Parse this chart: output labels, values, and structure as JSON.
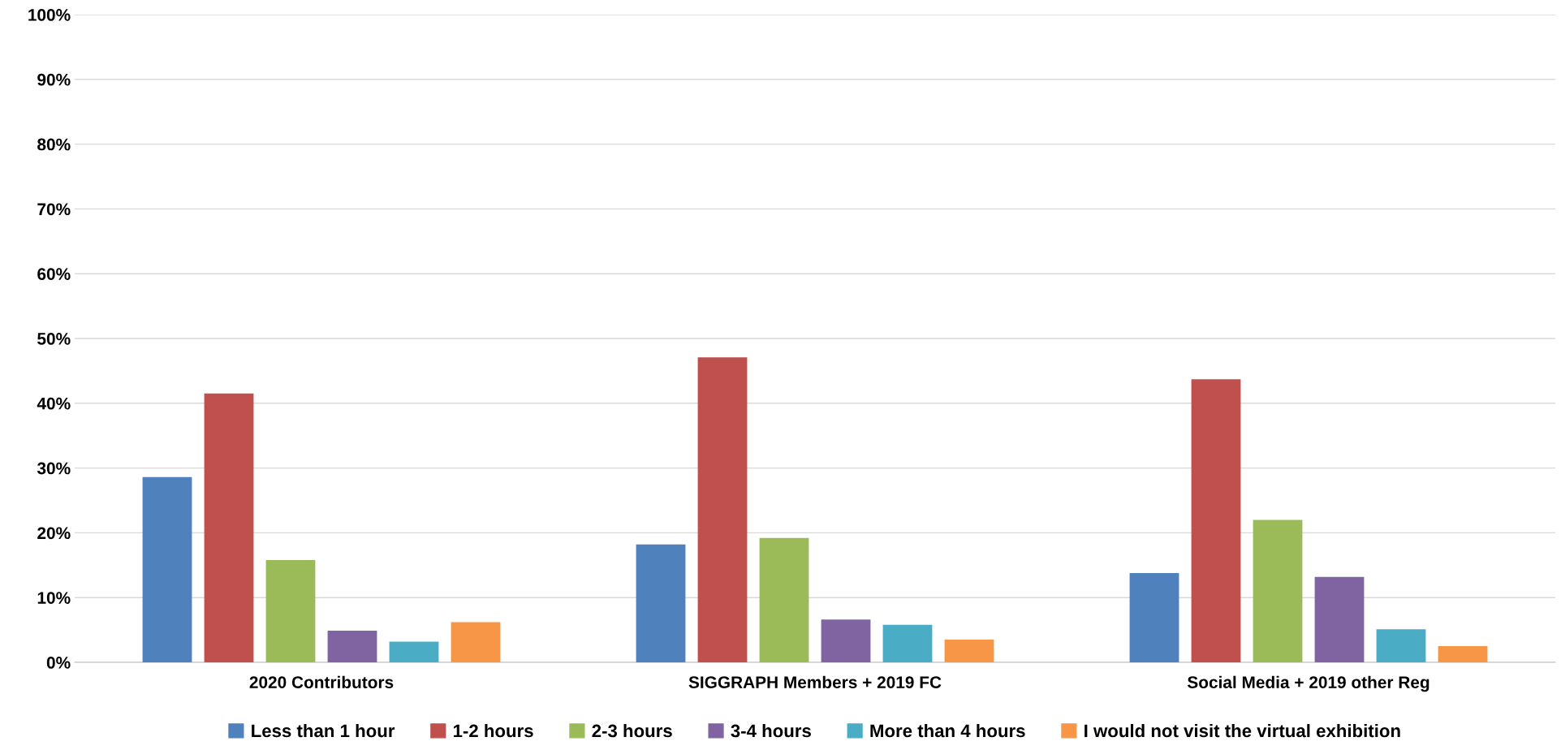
{
  "chart_data": {
    "type": "bar",
    "categories": [
      "2020 Contributors",
      "SIGGRAPH Members + 2019 FC",
      "Social Media + 2019 other Reg"
    ],
    "series": [
      {
        "name": "Less than 1 hour",
        "color": "#4f81bd",
        "values": [
          28.6,
          18.2,
          13.8
        ]
      },
      {
        "name": "1-2 hours",
        "color": "#c0504d",
        "values": [
          41.5,
          47.1,
          43.7
        ]
      },
      {
        "name": "2-3 hours",
        "color": "#9bbb59",
        "values": [
          15.8,
          19.2,
          22.0
        ]
      },
      {
        "name": "3-4 hours",
        "color": "#8064a2",
        "values": [
          4.9,
          6.6,
          13.2
        ]
      },
      {
        "name": "More than 4 hours",
        "color": "#4bacc6",
        "values": [
          3.2,
          5.8,
          5.1
        ]
      },
      {
        "name": "I would not visit the virtual exhibition",
        "color": "#f79646",
        "values": [
          6.2,
          3.5,
          2.5
        ]
      }
    ],
    "ylim": [
      0,
      100
    ],
    "yticks": [
      {
        "value": 0,
        "label": "0%"
      },
      {
        "value": 10,
        "label": "10%"
      },
      {
        "value": 20,
        "label": "20%"
      },
      {
        "value": 30,
        "label": "30%"
      },
      {
        "value": 40,
        "label": "40%"
      },
      {
        "value": 50,
        "label": "50%"
      },
      {
        "value": 60,
        "label": "60%"
      },
      {
        "value": 70,
        "label": "70%"
      },
      {
        "value": 80,
        "label": "80%"
      },
      {
        "value": 90,
        "label": "90%"
      },
      {
        "value": 100,
        "label": "100%"
      }
    ],
    "grid": "y",
    "legend": "bottom"
  }
}
